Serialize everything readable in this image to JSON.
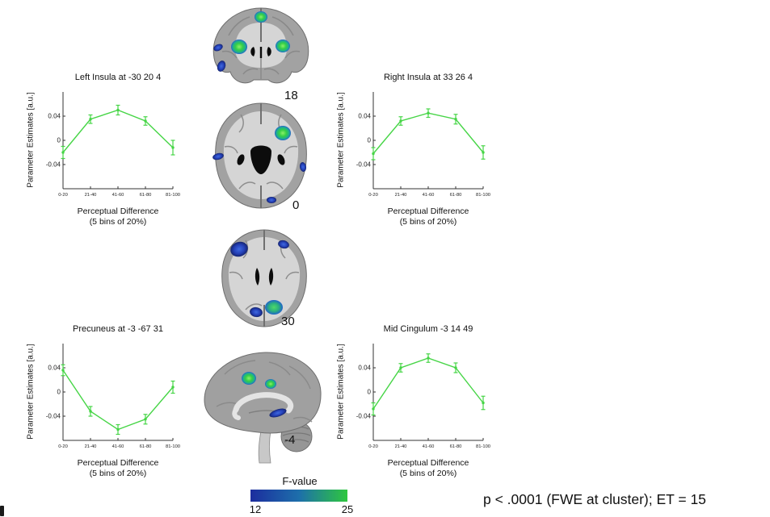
{
  "note": "p < .0001 (FWE at cluster); ET = 15",
  "colorbar": {
    "title": "F-value",
    "min_label": "12",
    "max_label": "25",
    "min_color": "#1c2d9e",
    "max_color": "#2ec73e"
  },
  "slices": [
    {
      "label": "18"
    },
    {
      "label": "0"
    },
    {
      "label": "30"
    },
    {
      "label": "-4"
    }
  ],
  "chart_data": [
    {
      "type": "line",
      "title": "Left Insula at -30 20 4",
      "ylabel": "Parameter Estimates [a.u.]",
      "xlabel": "Perceptual Difference",
      "xlabel2": "(5 bins of 20%)",
      "categories": [
        "0-20",
        "21-40",
        "41-60",
        "61-80",
        "81-100"
      ],
      "values": [
        -0.02,
        0.035,
        0.05,
        0.032,
        -0.012
      ],
      "errors": [
        0.01,
        0.007,
        0.008,
        0.007,
        0.012
      ],
      "yticks": [
        0.04,
        0,
        -0.04
      ],
      "ylim": [
        -0.08,
        0.08
      ],
      "line_color": "#46d546"
    },
    {
      "type": "line",
      "title": "Right Insula at 33 26 4",
      "ylabel": "Parameter Estimates [a.u.]",
      "xlabel": "Perceptual Difference",
      "xlabel2": "(5 bins of 20%)",
      "categories": [
        "0-20",
        "21-40",
        "41-60",
        "61-80",
        "81-100"
      ],
      "values": [
        -0.022,
        0.032,
        0.045,
        0.035,
        -0.02
      ],
      "errors": [
        0.01,
        0.007,
        0.007,
        0.008,
        0.011
      ],
      "yticks": [
        0.04,
        0,
        -0.04
      ],
      "ylim": [
        -0.08,
        0.08
      ],
      "line_color": "#46d546"
    },
    {
      "type": "line",
      "title": "Precuneus at -3 -67 31",
      "ylabel": "Parameter Estimates [a.u.]",
      "xlabel": "Perceptual Difference",
      "xlabel2": "(5 bins of 20%)",
      "categories": [
        "0-20",
        "21-40",
        "41-60",
        "61-80",
        "81-100"
      ],
      "values": [
        0.036,
        -0.032,
        -0.062,
        -0.045,
        0.008
      ],
      "errors": [
        0.009,
        0.008,
        0.008,
        0.008,
        0.01
      ],
      "yticks": [
        0.04,
        0,
        -0.04
      ],
      "ylim": [
        -0.08,
        0.08
      ],
      "line_color": "#46d546"
    },
    {
      "type": "line",
      "title": "Mid Cingulum -3 14 49",
      "ylabel": "Parameter Estimates [a.u.]",
      "xlabel": "Perceptual Difference",
      "xlabel2": "(5 bins of 20%)",
      "categories": [
        "0-20",
        "21-40",
        "41-60",
        "61-80",
        "81-100"
      ],
      "values": [
        -0.028,
        0.04,
        0.056,
        0.04,
        -0.018
      ],
      "errors": [
        0.01,
        0.007,
        0.007,
        0.008,
        0.011
      ],
      "yticks": [
        0.04,
        0,
        -0.04
      ],
      "ylim": [
        -0.08,
        0.08
      ],
      "line_color": "#46d546"
    }
  ]
}
